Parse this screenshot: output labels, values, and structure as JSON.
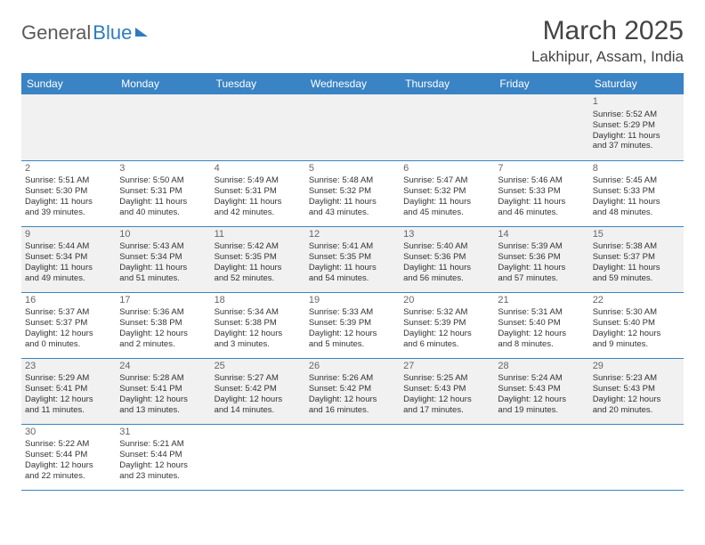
{
  "brand": {
    "part1": "General",
    "part2": "Blue"
  },
  "title": "March 2025",
  "location": "Lakhipur, Assam, India",
  "header_bg": "#3a83c4",
  "header_fg": "#ffffff",
  "row_alt_bg": "#f1f1f1",
  "border_color": "#3a83c4",
  "weekdays": [
    "Sunday",
    "Monday",
    "Tuesday",
    "Wednesday",
    "Thursday",
    "Friday",
    "Saturday"
  ],
  "weeks": [
    [
      null,
      null,
      null,
      null,
      null,
      null,
      {
        "n": "1",
        "sr": "Sunrise: 5:52 AM",
        "ss": "Sunset: 5:29 PM",
        "d1": "Daylight: 11 hours",
        "d2": "and 37 minutes."
      }
    ],
    [
      {
        "n": "2",
        "sr": "Sunrise: 5:51 AM",
        "ss": "Sunset: 5:30 PM",
        "d1": "Daylight: 11 hours",
        "d2": "and 39 minutes."
      },
      {
        "n": "3",
        "sr": "Sunrise: 5:50 AM",
        "ss": "Sunset: 5:31 PM",
        "d1": "Daylight: 11 hours",
        "d2": "and 40 minutes."
      },
      {
        "n": "4",
        "sr": "Sunrise: 5:49 AM",
        "ss": "Sunset: 5:31 PM",
        "d1": "Daylight: 11 hours",
        "d2": "and 42 minutes."
      },
      {
        "n": "5",
        "sr": "Sunrise: 5:48 AM",
        "ss": "Sunset: 5:32 PM",
        "d1": "Daylight: 11 hours",
        "d2": "and 43 minutes."
      },
      {
        "n": "6",
        "sr": "Sunrise: 5:47 AM",
        "ss": "Sunset: 5:32 PM",
        "d1": "Daylight: 11 hours",
        "d2": "and 45 minutes."
      },
      {
        "n": "7",
        "sr": "Sunrise: 5:46 AM",
        "ss": "Sunset: 5:33 PM",
        "d1": "Daylight: 11 hours",
        "d2": "and 46 minutes."
      },
      {
        "n": "8",
        "sr": "Sunrise: 5:45 AM",
        "ss": "Sunset: 5:33 PM",
        "d1": "Daylight: 11 hours",
        "d2": "and 48 minutes."
      }
    ],
    [
      {
        "n": "9",
        "sr": "Sunrise: 5:44 AM",
        "ss": "Sunset: 5:34 PM",
        "d1": "Daylight: 11 hours",
        "d2": "and 49 minutes."
      },
      {
        "n": "10",
        "sr": "Sunrise: 5:43 AM",
        "ss": "Sunset: 5:34 PM",
        "d1": "Daylight: 11 hours",
        "d2": "and 51 minutes."
      },
      {
        "n": "11",
        "sr": "Sunrise: 5:42 AM",
        "ss": "Sunset: 5:35 PM",
        "d1": "Daylight: 11 hours",
        "d2": "and 52 minutes."
      },
      {
        "n": "12",
        "sr": "Sunrise: 5:41 AM",
        "ss": "Sunset: 5:35 PM",
        "d1": "Daylight: 11 hours",
        "d2": "and 54 minutes."
      },
      {
        "n": "13",
        "sr": "Sunrise: 5:40 AM",
        "ss": "Sunset: 5:36 PM",
        "d1": "Daylight: 11 hours",
        "d2": "and 56 minutes."
      },
      {
        "n": "14",
        "sr": "Sunrise: 5:39 AM",
        "ss": "Sunset: 5:36 PM",
        "d1": "Daylight: 11 hours",
        "d2": "and 57 minutes."
      },
      {
        "n": "15",
        "sr": "Sunrise: 5:38 AM",
        "ss": "Sunset: 5:37 PM",
        "d1": "Daylight: 11 hours",
        "d2": "and 59 minutes."
      }
    ],
    [
      {
        "n": "16",
        "sr": "Sunrise: 5:37 AM",
        "ss": "Sunset: 5:37 PM",
        "d1": "Daylight: 12 hours",
        "d2": "and 0 minutes."
      },
      {
        "n": "17",
        "sr": "Sunrise: 5:36 AM",
        "ss": "Sunset: 5:38 PM",
        "d1": "Daylight: 12 hours",
        "d2": "and 2 minutes."
      },
      {
        "n": "18",
        "sr": "Sunrise: 5:34 AM",
        "ss": "Sunset: 5:38 PM",
        "d1": "Daylight: 12 hours",
        "d2": "and 3 minutes."
      },
      {
        "n": "19",
        "sr": "Sunrise: 5:33 AM",
        "ss": "Sunset: 5:39 PM",
        "d1": "Daylight: 12 hours",
        "d2": "and 5 minutes."
      },
      {
        "n": "20",
        "sr": "Sunrise: 5:32 AM",
        "ss": "Sunset: 5:39 PM",
        "d1": "Daylight: 12 hours",
        "d2": "and 6 minutes."
      },
      {
        "n": "21",
        "sr": "Sunrise: 5:31 AM",
        "ss": "Sunset: 5:40 PM",
        "d1": "Daylight: 12 hours",
        "d2": "and 8 minutes."
      },
      {
        "n": "22",
        "sr": "Sunrise: 5:30 AM",
        "ss": "Sunset: 5:40 PM",
        "d1": "Daylight: 12 hours",
        "d2": "and 9 minutes."
      }
    ],
    [
      {
        "n": "23",
        "sr": "Sunrise: 5:29 AM",
        "ss": "Sunset: 5:41 PM",
        "d1": "Daylight: 12 hours",
        "d2": "and 11 minutes."
      },
      {
        "n": "24",
        "sr": "Sunrise: 5:28 AM",
        "ss": "Sunset: 5:41 PM",
        "d1": "Daylight: 12 hours",
        "d2": "and 13 minutes."
      },
      {
        "n": "25",
        "sr": "Sunrise: 5:27 AM",
        "ss": "Sunset: 5:42 PM",
        "d1": "Daylight: 12 hours",
        "d2": "and 14 minutes."
      },
      {
        "n": "26",
        "sr": "Sunrise: 5:26 AM",
        "ss": "Sunset: 5:42 PM",
        "d1": "Daylight: 12 hours",
        "d2": "and 16 minutes."
      },
      {
        "n": "27",
        "sr": "Sunrise: 5:25 AM",
        "ss": "Sunset: 5:43 PM",
        "d1": "Daylight: 12 hours",
        "d2": "and 17 minutes."
      },
      {
        "n": "28",
        "sr": "Sunrise: 5:24 AM",
        "ss": "Sunset: 5:43 PM",
        "d1": "Daylight: 12 hours",
        "d2": "and 19 minutes."
      },
      {
        "n": "29",
        "sr": "Sunrise: 5:23 AM",
        "ss": "Sunset: 5:43 PM",
        "d1": "Daylight: 12 hours",
        "d2": "and 20 minutes."
      }
    ],
    [
      {
        "n": "30",
        "sr": "Sunrise: 5:22 AM",
        "ss": "Sunset: 5:44 PM",
        "d1": "Daylight: 12 hours",
        "d2": "and 22 minutes."
      },
      {
        "n": "31",
        "sr": "Sunrise: 5:21 AM",
        "ss": "Sunset: 5:44 PM",
        "d1": "Daylight: 12 hours",
        "d2": "and 23 minutes."
      },
      null,
      null,
      null,
      null,
      null
    ]
  ]
}
